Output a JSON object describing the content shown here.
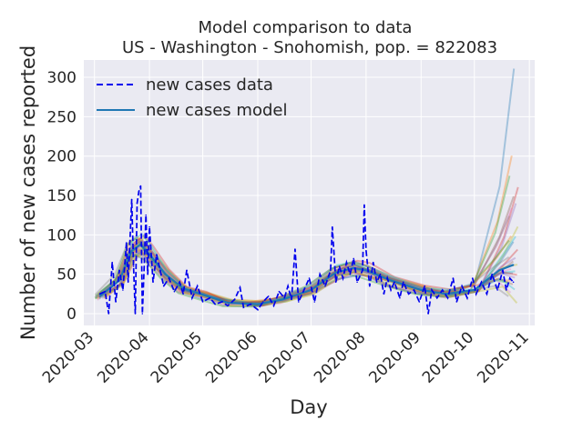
{
  "chart_data": {
    "type": "line",
    "title": [
      "Model comparison to data",
      "US - Washington - Snohomish, pop. = 822083"
    ],
    "xlabel": "Day",
    "ylabel": "Number of new cases reported",
    "xlim": [
      "2020-02-24",
      "2020-11-04"
    ],
    "ylim": [
      -15,
      322
    ],
    "x_ticks": [
      "2020-03",
      "2020-04",
      "2020-05",
      "2020-06",
      "2020-07",
      "2020-08",
      "2020-09",
      "2020-10",
      "2020-11"
    ],
    "x_tick_dates": [
      "2020-03-01",
      "2020-04-01",
      "2020-05-01",
      "2020-06-01",
      "2020-07-01",
      "2020-08-01",
      "2020-09-01",
      "2020-10-01",
      "2020-11-01"
    ],
    "y_ticks": [
      0,
      50,
      100,
      150,
      200,
      250,
      300
    ],
    "grid": true,
    "legend": {
      "placement": "top-left",
      "entries": [
        "new cases data",
        "new cases model"
      ]
    },
    "series": [
      {
        "name": "new cases data",
        "style": "dashed",
        "color": "#0000ee",
        "points": [
          [
            "2020-03-04",
            25
          ],
          [
            "2020-03-07",
            28
          ],
          [
            "2020-03-09",
            0
          ],
          [
            "2020-03-11",
            65
          ],
          [
            "2020-03-13",
            15
          ],
          [
            "2020-03-15",
            55
          ],
          [
            "2020-03-17",
            30
          ],
          [
            "2020-03-19",
            90
          ],
          [
            "2020-03-20",
            40
          ],
          [
            "2020-03-22",
            145
          ],
          [
            "2020-03-23",
            60
          ],
          [
            "2020-03-24",
            0
          ],
          [
            "2020-03-25",
            140
          ],
          [
            "2020-03-26",
            155
          ],
          [
            "2020-03-27",
            162
          ],
          [
            "2020-03-28",
            0
          ],
          [
            "2020-03-29",
            60
          ],
          [
            "2020-03-30",
            125
          ],
          [
            "2020-03-31",
            50
          ],
          [
            "2020-04-01",
            110
          ],
          [
            "2020-04-03",
            40
          ],
          [
            "2020-04-05",
            75
          ],
          [
            "2020-04-07",
            55
          ],
          [
            "2020-04-09",
            35
          ],
          [
            "2020-04-12",
            45
          ],
          [
            "2020-04-15",
            28
          ],
          [
            "2020-04-18",
            40
          ],
          [
            "2020-04-20",
            25
          ],
          [
            "2020-04-22",
            55
          ],
          [
            "2020-04-25",
            20
          ],
          [
            "2020-04-28",
            35
          ],
          [
            "2020-05-01",
            15
          ],
          [
            "2020-05-05",
            20
          ],
          [
            "2020-05-08",
            12
          ],
          [
            "2020-05-12",
            15
          ],
          [
            "2020-05-15",
            10
          ],
          [
            "2020-05-19",
            18
          ],
          [
            "2020-05-22",
            33
          ],
          [
            "2020-05-24",
            8
          ],
          [
            "2020-05-28",
            12
          ],
          [
            "2020-06-01",
            5
          ],
          [
            "2020-06-04",
            15
          ],
          [
            "2020-06-07",
            22
          ],
          [
            "2020-06-10",
            10
          ],
          [
            "2020-06-13",
            28
          ],
          [
            "2020-06-16",
            20
          ],
          [
            "2020-06-18",
            35
          ],
          [
            "2020-06-20",
            18
          ],
          [
            "2020-06-22",
            82
          ],
          [
            "2020-06-24",
            15
          ],
          [
            "2020-06-27",
            30
          ],
          [
            "2020-06-30",
            45
          ],
          [
            "2020-07-03",
            15
          ],
          [
            "2020-07-06",
            50
          ],
          [
            "2020-07-09",
            35
          ],
          [
            "2020-07-12",
            55
          ],
          [
            "2020-07-13",
            110
          ],
          [
            "2020-07-15",
            40
          ],
          [
            "2020-07-17",
            60
          ],
          [
            "2020-07-19",
            45
          ],
          [
            "2020-07-21",
            65
          ],
          [
            "2020-07-23",
            50
          ],
          [
            "2020-07-25",
            70
          ],
          [
            "2020-07-27",
            40
          ],
          [
            "2020-07-30",
            55
          ],
          [
            "2020-07-31",
            138
          ],
          [
            "2020-08-01",
            80
          ],
          [
            "2020-08-03",
            35
          ],
          [
            "2020-08-05",
            65
          ],
          [
            "2020-08-07",
            40
          ],
          [
            "2020-08-09",
            50
          ],
          [
            "2020-08-11",
            25
          ],
          [
            "2020-08-13",
            45
          ],
          [
            "2020-08-15",
            30
          ],
          [
            "2020-08-17",
            40
          ],
          [
            "2020-08-20",
            20
          ],
          [
            "2020-08-22",
            40
          ],
          [
            "2020-08-25",
            25
          ],
          [
            "2020-08-28",
            30
          ],
          [
            "2020-08-31",
            15
          ],
          [
            "2020-09-03",
            35
          ],
          [
            "2020-09-05",
            0
          ],
          [
            "2020-09-07",
            30
          ],
          [
            "2020-09-10",
            20
          ],
          [
            "2020-09-13",
            30
          ],
          [
            "2020-09-16",
            20
          ],
          [
            "2020-09-19",
            45
          ],
          [
            "2020-09-21",
            15
          ],
          [
            "2020-09-24",
            35
          ],
          [
            "2020-09-27",
            20
          ],
          [
            "2020-09-30",
            45
          ],
          [
            "2020-10-02",
            25
          ],
          [
            "2020-10-05",
            40
          ],
          [
            "2020-10-08",
            25
          ],
          [
            "2020-10-11",
            50
          ],
          [
            "2020-10-14",
            30
          ],
          [
            "2020-10-17",
            55
          ],
          [
            "2020-10-19",
            30
          ],
          [
            "2020-10-21",
            45
          ],
          [
            "2020-10-23",
            40
          ]
        ]
      },
      {
        "name": "new cases model",
        "color": "#1f77b4",
        "points": [
          [
            "2020-03-04",
            22
          ],
          [
            "2020-03-15",
            42
          ],
          [
            "2020-03-22",
            80
          ],
          [
            "2020-03-27",
            88
          ],
          [
            "2020-04-01",
            75
          ],
          [
            "2020-04-10",
            50
          ],
          [
            "2020-04-20",
            32
          ],
          [
            "2020-05-01",
            24
          ],
          [
            "2020-05-15",
            14
          ],
          [
            "2020-06-01",
            12
          ],
          [
            "2020-06-15",
            18
          ],
          [
            "2020-07-01",
            30
          ],
          [
            "2020-07-15",
            52
          ],
          [
            "2020-07-25",
            58
          ],
          [
            "2020-08-01",
            55
          ],
          [
            "2020-08-15",
            42
          ],
          [
            "2020-09-01",
            30
          ],
          [
            "2020-09-15",
            25
          ],
          [
            "2020-10-01",
            30
          ],
          [
            "2020-10-15",
            55
          ],
          [
            "2020-10-23",
            62
          ]
        ]
      }
    ],
    "ensemble_endpoints": [
      305,
      200,
      180,
      165,
      150,
      140,
      130,
      120,
      112,
      105,
      98,
      92,
      86,
      80,
      75,
      70,
      66,
      62,
      58,
      55,
      52,
      48,
      45,
      42,
      38,
      35,
      30,
      25,
      22,
      20
    ],
    "ensemble_colors": [
      "#1f77b4",
      "#ff7f0e",
      "#2ca02c",
      "#d62728",
      "#9467bd",
      "#8c564b",
      "#e377c2",
      "#7f7f7f",
      "#bcbd22",
      "#17becf"
    ]
  }
}
